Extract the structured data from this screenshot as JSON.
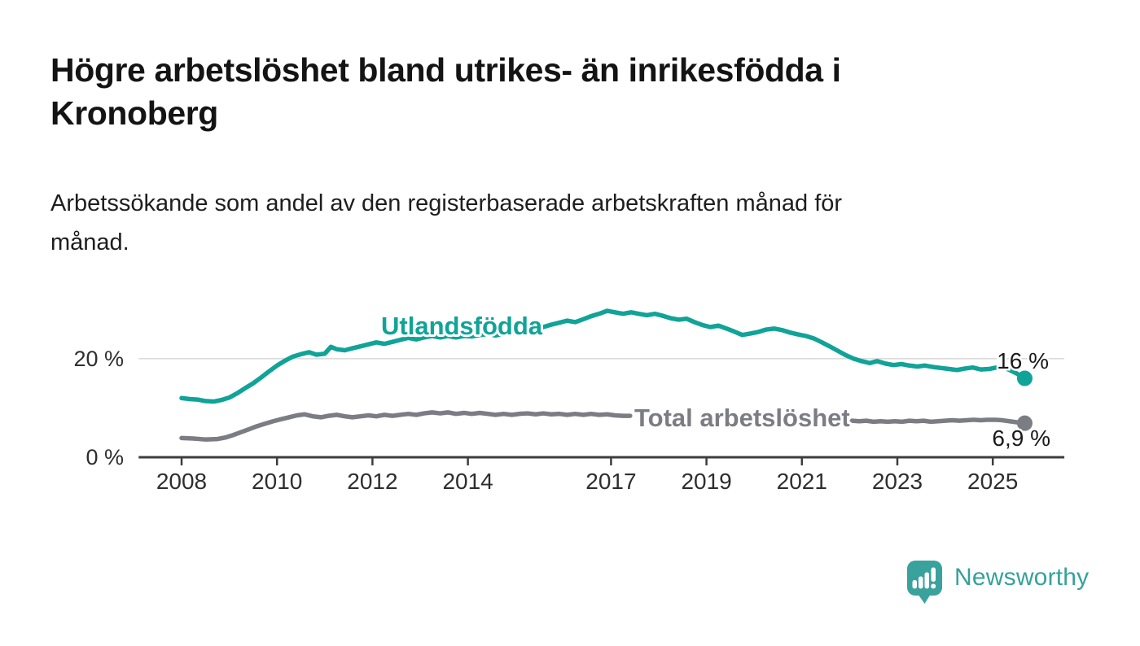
{
  "header": {
    "title_lines": [
      "Högre arbetslöshet bland utrikes- än inrikesfödda i",
      "Kronoberg"
    ],
    "subtitle_lines": [
      "Arbetssökande som andel av den registerbaserade arbetskraften månad för",
      "månad."
    ]
  },
  "footer": {
    "brand_name": "Newsworthy",
    "brand_color": "#35a19c",
    "icon_color": "#3aa29d"
  },
  "chart_data": {
    "type": "line",
    "unit": "%",
    "x_axis": {
      "ticks": [
        2008,
        2010,
        2012,
        2014,
        2017,
        2019,
        2021,
        2023,
        2025
      ],
      "axis_range": [
        2007.1,
        2026.5
      ],
      "data_range": [
        2008.0,
        2025.67
      ]
    },
    "y_axis": {
      "range": [
        0,
        35
      ],
      "ticks": [
        {
          "value": 20,
          "label": "20 %",
          "gridline": true
        },
        {
          "value": 0,
          "label": "0 %",
          "gridline": false
        }
      ]
    },
    "grid": "single horizontal gridline at 20 %",
    "legend_position": "inline-labels-on-lines",
    "colors": {
      "foreign_born": "#11a398",
      "total": "#7c7c84",
      "gridline": "#dcdcdc",
      "axis": "#3d3d3d",
      "tick_text": "#2e2e2e",
      "value_label_text": "#1a1a1a"
    },
    "series": [
      {
        "name": "Utlandsfödda",
        "color": "#11a398",
        "end_value": 16,
        "end_label": "16 %",
        "segments": [
          [
            [
              2008.0,
              12.0
            ],
            [
              2008.17,
              11.8
            ],
            [
              2008.33,
              11.7
            ],
            [
              2008.5,
              11.4
            ],
            [
              2008.67,
              11.3
            ],
            [
              2008.83,
              11.6
            ],
            [
              2009.0,
              12.1
            ],
            [
              2009.17,
              13.0
            ],
            [
              2009.33,
              14.0
            ],
            [
              2009.5,
              15.0
            ],
            [
              2009.67,
              16.2
            ],
            [
              2009.83,
              17.4
            ],
            [
              2010.0,
              18.6
            ],
            [
              2010.17,
              19.6
            ],
            [
              2010.33,
              20.4
            ],
            [
              2010.5,
              20.9
            ],
            [
              2010.67,
              21.3
            ],
            [
              2010.83,
              20.8
            ],
            [
              2011.0,
              21.0
            ],
            [
              2011.13,
              22.4
            ],
            [
              2011.25,
              21.9
            ],
            [
              2011.42,
              21.7
            ],
            [
              2011.58,
              22.1
            ],
            [
              2011.75,
              22.5
            ],
            [
              2011.92,
              22.9
            ],
            [
              2012.08,
              23.3
            ],
            [
              2012.25,
              23.0
            ],
            [
              2012.42,
              23.4
            ],
            [
              2012.58,
              23.8
            ],
            [
              2012.75,
              24.2
            ],
            [
              2012.92,
              23.9
            ],
            [
              2013.08,
              24.3
            ],
            [
              2013.25,
              24.6
            ],
            [
              2013.42,
              24.3
            ],
            [
              2013.58,
              24.6
            ],
            [
              2013.75,
              24.3
            ],
            [
              2013.92,
              24.6
            ],
            [
              2014.08,
              24.5
            ],
            [
              2014.25,
              24.8
            ],
            [
              2014.42,
              25.0
            ],
            [
              2014.58,
              24.7
            ],
            [
              2014.75,
              25.0
            ],
            [
              2014.92,
              25.2
            ],
            [
              2015.08,
              25.4
            ],
            [
              2015.25,
              25.7
            ],
            [
              2015.42,
              26.0
            ],
            [
              2015.58,
              26.4
            ],
            [
              2015.75,
              26.9
            ],
            [
              2015.92,
              27.3
            ],
            [
              2016.08,
              27.7
            ],
            [
              2016.25,
              27.4
            ],
            [
              2016.42,
              28.0
            ],
            [
              2016.58,
              28.6
            ],
            [
              2016.75,
              29.1
            ],
            [
              2016.92,
              29.7
            ],
            [
              2017.08,
              29.4
            ],
            [
              2017.25,
              29.1
            ],
            [
              2017.42,
              29.4
            ],
            [
              2017.58,
              29.1
            ],
            [
              2017.75,
              28.8
            ],
            [
              2017.92,
              29.1
            ],
            [
              2018.08,
              28.7
            ],
            [
              2018.25,
              28.2
            ],
            [
              2018.42,
              27.9
            ],
            [
              2018.58,
              28.1
            ],
            [
              2018.75,
              27.4
            ],
            [
              2018.92,
              26.8
            ],
            [
              2019.08,
              26.4
            ],
            [
              2019.25,
              26.7
            ],
            [
              2019.42,
              26.1
            ],
            [
              2019.58,
              25.5
            ],
            [
              2019.75,
              24.8
            ],
            [
              2019.92,
              25.1
            ],
            [
              2020.08,
              25.4
            ],
            [
              2020.25,
              25.9
            ],
            [
              2020.42,
              26.1
            ],
            [
              2020.58,
              25.8
            ],
            [
              2020.75,
              25.3
            ],
            [
              2020.92,
              24.9
            ],
            [
              2021.08,
              24.6
            ],
            [
              2021.25,
              24.1
            ],
            [
              2021.42,
              23.3
            ],
            [
              2021.58,
              22.5
            ],
            [
              2021.75,
              21.6
            ],
            [
              2021.92,
              20.7
            ],
            [
              2022.08,
              20.0
            ],
            [
              2022.25,
              19.5
            ],
            [
              2022.42,
              19.1
            ],
            [
              2022.58,
              19.5
            ],
            [
              2022.75,
              19.0
            ],
            [
              2022.92,
              18.7
            ],
            [
              2023.08,
              18.9
            ],
            [
              2023.25,
              18.6
            ],
            [
              2023.42,
              18.4
            ],
            [
              2023.58,
              18.6
            ],
            [
              2023.75,
              18.3
            ],
            [
              2023.92,
              18.1
            ],
            [
              2024.08,
              17.9
            ],
            [
              2024.25,
              17.7
            ],
            [
              2024.42,
              18.0
            ],
            [
              2024.58,
              18.2
            ],
            [
              2024.75,
              17.8
            ],
            [
              2024.92,
              17.9
            ],
            [
              2025.08,
              18.2
            ],
            [
              2025.2,
              18.4
            ],
            [
              2025.33,
              17.8
            ],
            [
              2025.5,
              17.0
            ],
            [
              2025.67,
              16.0
            ]
          ]
        ]
      },
      {
        "name": "Total arbetslöshet",
        "color": "#7c7c84",
        "end_value": 6.9,
        "end_label": "6,9 %",
        "segments": [
          [
            [
              2008.0,
              3.9
            ],
            [
              2008.25,
              3.8
            ],
            [
              2008.5,
              3.6
            ],
            [
              2008.75,
              3.7
            ],
            [
              2008.92,
              4.0
            ],
            [
              2009.08,
              4.5
            ],
            [
              2009.25,
              5.1
            ],
            [
              2009.42,
              5.7
            ],
            [
              2009.58,
              6.3
            ],
            [
              2009.75,
              6.8
            ],
            [
              2009.92,
              7.3
            ],
            [
              2010.08,
              7.7
            ],
            [
              2010.25,
              8.1
            ],
            [
              2010.42,
              8.5
            ],
            [
              2010.58,
              8.7
            ],
            [
              2010.75,
              8.3
            ],
            [
              2010.92,
              8.1
            ],
            [
              2011.08,
              8.4
            ],
            [
              2011.25,
              8.6
            ],
            [
              2011.42,
              8.3
            ],
            [
              2011.58,
              8.1
            ],
            [
              2011.75,
              8.3
            ],
            [
              2011.92,
              8.5
            ],
            [
              2012.08,
              8.3
            ],
            [
              2012.25,
              8.6
            ],
            [
              2012.42,
              8.4
            ],
            [
              2012.58,
              8.6
            ],
            [
              2012.75,
              8.8
            ],
            [
              2012.92,
              8.6
            ],
            [
              2013.08,
              8.9
            ],
            [
              2013.25,
              9.1
            ],
            [
              2013.42,
              8.9
            ],
            [
              2013.58,
              9.1
            ],
            [
              2013.75,
              8.8
            ],
            [
              2013.92,
              9.0
            ],
            [
              2014.08,
              8.8
            ],
            [
              2014.25,
              9.0
            ],
            [
              2014.42,
              8.8
            ],
            [
              2014.58,
              8.6
            ],
            [
              2014.75,
              8.8
            ],
            [
              2014.92,
              8.6
            ],
            [
              2015.08,
              8.8
            ],
            [
              2015.25,
              8.9
            ],
            [
              2015.42,
              8.7
            ],
            [
              2015.58,
              8.9
            ],
            [
              2015.75,
              8.7
            ],
            [
              2015.92,
              8.8
            ],
            [
              2016.08,
              8.6
            ],
            [
              2016.25,
              8.8
            ],
            [
              2016.42,
              8.6
            ],
            [
              2016.58,
              8.8
            ],
            [
              2016.75,
              8.6
            ],
            [
              2016.92,
              8.7
            ],
            [
              2017.08,
              8.5
            ],
            [
              2017.25,
              8.4
            ],
            [
              2017.4,
              8.4
            ]
          ],
          [
            [
              2022.05,
              7.4
            ],
            [
              2022.2,
              7.3
            ],
            [
              2022.35,
              7.4
            ],
            [
              2022.5,
              7.2
            ],
            [
              2022.65,
              7.3
            ],
            [
              2022.8,
              7.2
            ],
            [
              2022.95,
              7.3
            ],
            [
              2023.1,
              7.2
            ],
            [
              2023.25,
              7.4
            ],
            [
              2023.4,
              7.3
            ],
            [
              2023.55,
              7.4
            ],
            [
              2023.7,
              7.2
            ],
            [
              2023.85,
              7.3
            ],
            [
              2024.0,
              7.4
            ],
            [
              2024.15,
              7.5
            ],
            [
              2024.3,
              7.4
            ],
            [
              2024.45,
              7.5
            ],
            [
              2024.6,
              7.6
            ],
            [
              2024.75,
              7.5
            ],
            [
              2024.9,
              7.6
            ],
            [
              2025.05,
              7.6
            ],
            [
              2025.2,
              7.5
            ],
            [
              2025.35,
              7.3
            ],
            [
              2025.5,
              7.1
            ],
            [
              2025.67,
              6.9
            ]
          ]
        ]
      }
    ]
  }
}
